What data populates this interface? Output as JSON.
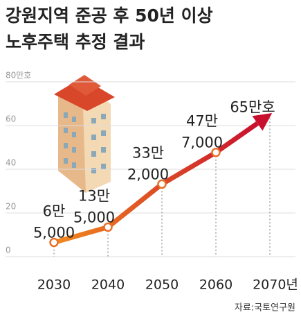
{
  "chart_data": {
    "type": "line",
    "title": [
      "강원지역 준공 후 50년 이상",
      "노후주택 추정 결과"
    ],
    "categories": [
      "2030",
      "2040",
      "2050",
      "2060",
      "2070년"
    ],
    "values": [
      6.5,
      13.5,
      33.2,
      47.7,
      65
    ],
    "value_labels": [
      [
        "6만",
        "5,000"
      ],
      [
        "13만",
        "5,000"
      ],
      [
        "33만",
        "2,000"
      ],
      [
        "47만",
        "7,000"
      ],
      [
        "65만호"
      ]
    ],
    "color": [
      "#f28a1e",
      "#c8102e"
    ],
    "ylim": [
      0,
      80
    ],
    "yticks": [
      0,
      20,
      40,
      60,
      {
        "value": 80,
        "label": "80만호"
      }
    ],
    "grid": true,
    "source": "자료:국토연구원"
  }
}
